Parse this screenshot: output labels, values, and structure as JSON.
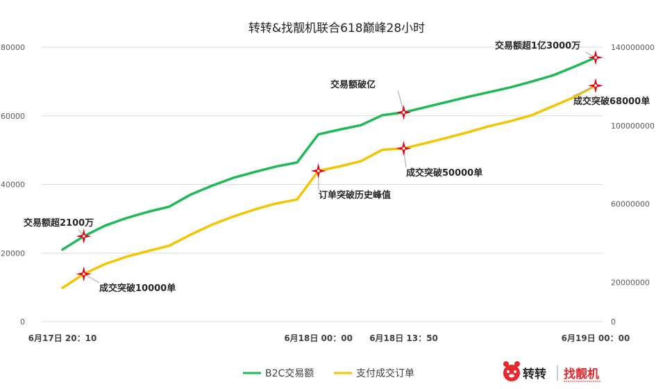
{
  "chart_data": {
    "type": "line",
    "title": "转转&找靓机联合618巅峰28小时",
    "x_tick_labels": [
      "6月17日 20：10",
      "6月18日 00：00",
      "6月18日 13：50",
      "6月19日 00：00"
    ],
    "y_left": {
      "ticks": [
        "0",
        "20000",
        "40000",
        "60000",
        "80000"
      ],
      "ylim": [
        0,
        80000
      ]
    },
    "y_right": {
      "ticks": [
        "0",
        "20000000",
        "60000000",
        "100000000",
        "140000000"
      ],
      "ylim": [
        0,
        140000000
      ]
    },
    "grid": true,
    "legend_position": "bottom",
    "series": [
      {
        "name": "B2C交易额",
        "axis": "left",
        "color": "#1db954",
        "x": [
          0,
          1,
          2,
          3,
          4,
          5,
          6,
          7,
          8,
          9,
          10,
          11,
          12,
          13,
          14,
          15,
          16,
          17,
          18,
          19,
          20,
          21,
          22,
          23,
          24,
          25
        ],
        "values": [
          21000,
          24900,
          28000,
          30200,
          32000,
          33500,
          37000,
          39600,
          41900,
          43600,
          45200,
          46400,
          54600,
          56000,
          57300,
          60200,
          61000,
          62500,
          64000,
          65500,
          66900,
          68300,
          70000,
          71800,
          74300,
          77000
        ]
      },
      {
        "name": "支付成交订单",
        "axis": "right",
        "color": "#f5c400",
        "x": [
          0,
          1,
          2,
          3,
          4,
          5,
          6,
          7,
          8,
          9,
          10,
          11,
          12,
          13,
          14,
          15,
          16,
          17,
          18,
          19,
          20,
          21,
          22,
          23,
          24,
          25
        ],
        "values": [
          17200000,
          24300000,
          29400000,
          33100000,
          36000000,
          38700000,
          44300000,
          49400000,
          53600000,
          57200000,
          60200000,
          62300000,
          76900000,
          79200000,
          81900000,
          87700000,
          88400000,
          91000000,
          93700000,
          96600000,
          99700000,
          102300000,
          105300000,
          109900000,
          114600000,
          120400000
        ]
      }
    ],
    "annotations": [
      {
        "text": "交易额超2100万",
        "series": 0,
        "index": 1
      },
      {
        "text": "成交突破10000单",
        "series": 1,
        "index": 1
      },
      {
        "text": "订单突破历史峰值",
        "series": 1,
        "index": 12
      },
      {
        "text": "交易额破亿",
        "series": 0,
        "index": 16
      },
      {
        "text": "成交突破50000单",
        "series": 1,
        "index": 16
      },
      {
        "text": "交易额超1亿3000万",
        "series": 0,
        "index": 25
      },
      {
        "text": "成交突破68000单",
        "series": 1,
        "index": 25
      }
    ]
  },
  "logo": {
    "brand1": "转转",
    "brand2": "找靓机"
  },
  "colors": {
    "brand_red": "#e8262d",
    "marker_red": "#e60012"
  }
}
